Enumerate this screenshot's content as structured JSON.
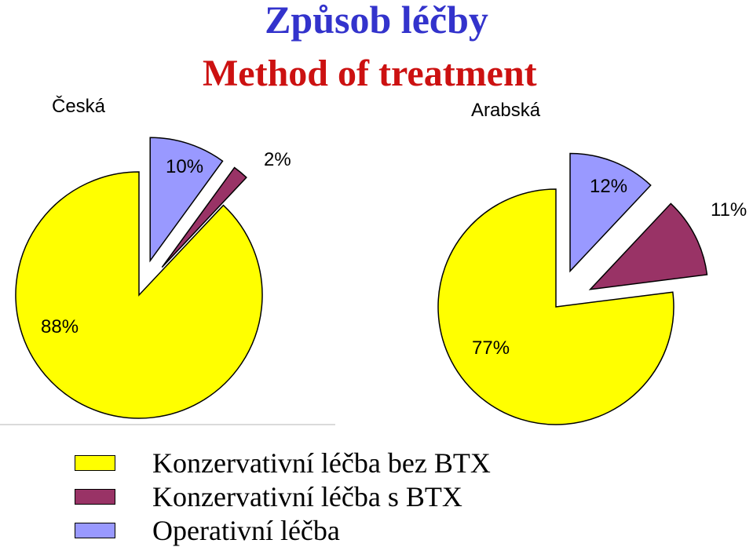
{
  "title": "Způsob léčby",
  "subtitle": "Method of treatment",
  "colors": {
    "title": "#3333cc",
    "subtitle": "#cc1111",
    "conservative_without_btx": "#ffff00",
    "conservative_with_btx": "#993366",
    "operative": "#9999ff"
  },
  "legend": [
    {
      "label": "Konzervativní léčba bez BTX",
      "color": "#ffff00"
    },
    {
      "label": "Konzervativní léčba s BTX",
      "color": "#993366"
    },
    {
      "label": "Operativní léčba",
      "color": "#9999ff"
    }
  ],
  "chart_data": [
    {
      "type": "pie",
      "title": "Česká",
      "categories": [
        "Konzervativní léčba bez BTX",
        "Konzervativní léčba s BTX",
        "Operativní léčba"
      ],
      "values": [
        88,
        2,
        10
      ],
      "labels": [
        "88%",
        "2%",
        "10%"
      ],
      "exploded": [
        "Konzervativní léčba s BTX",
        "Operativní léčba"
      ],
      "legend": "bottom"
    },
    {
      "type": "pie",
      "title": "Arabská",
      "categories": [
        "Konzervativní léčba bez BTX",
        "Konzervativní léčba s BTX",
        "Operativní léčba"
      ],
      "values": [
        77,
        11,
        12
      ],
      "labels": [
        "77%",
        "11%",
        "12%"
      ],
      "exploded": [
        "Konzervativní léčba s BTX",
        "Operativní léčba"
      ],
      "legend": "bottom"
    }
  ]
}
